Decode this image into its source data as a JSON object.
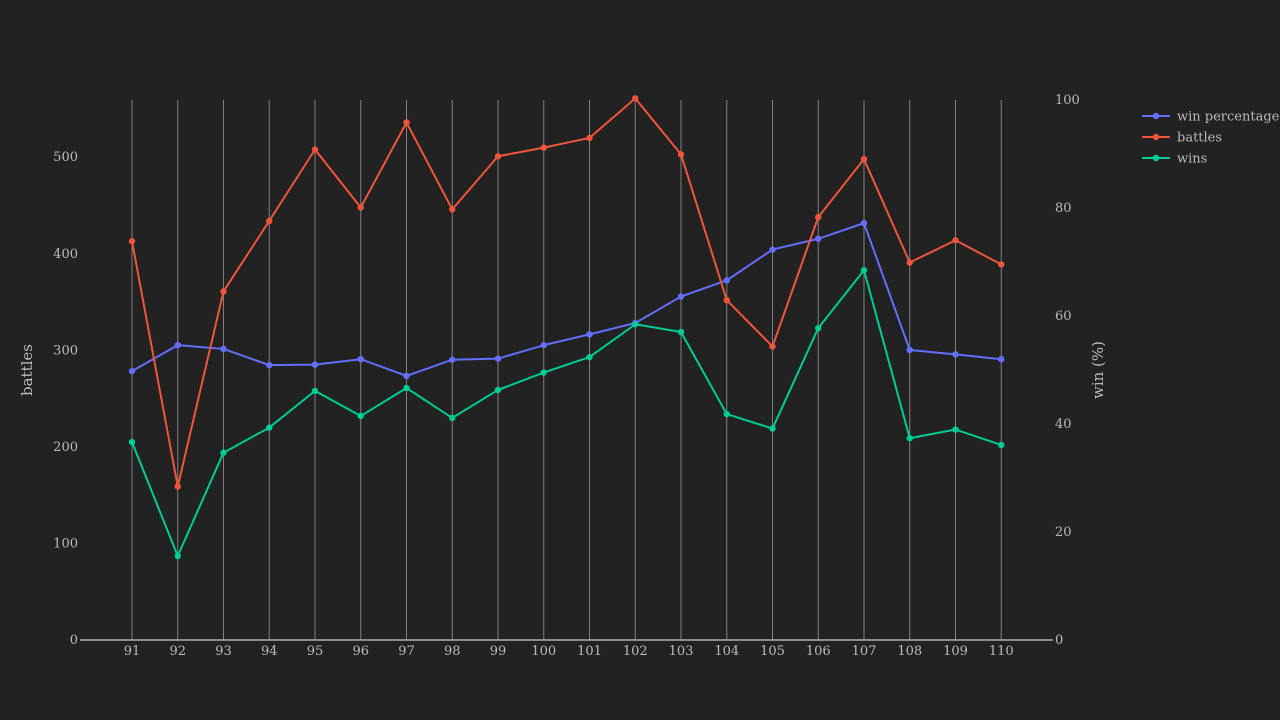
{
  "chart_data": {
    "type": "line",
    "x": [
      91,
      92,
      93,
      94,
      95,
      96,
      97,
      98,
      99,
      100,
      101,
      102,
      103,
      104,
      105,
      106,
      107,
      108,
      109,
      110
    ],
    "xtick_labels": [
      "91",
      "92",
      "93",
      "94",
      "95",
      "96",
      "97",
      "98",
      "99",
      "100",
      "101",
      "102",
      "103",
      "104",
      "105",
      "106",
      "107",
      "108",
      "109",
      "110"
    ],
    "ylabel": "battles",
    "y2label": "win (%)",
    "ylim": [
      0,
      580
    ],
    "y2lim": [
      0,
      100
    ],
    "yticks": [
      0,
      100,
      200,
      300,
      400,
      500
    ],
    "y2ticks": [
      0,
      20,
      40,
      60,
      80,
      100
    ],
    "grid": "vertical",
    "legend_position": "top-right",
    "series": [
      {
        "name": "win percentage",
        "axis": "right",
        "color": "#636efa",
        "values": [
          49.8,
          54.6,
          53.9,
          50.9,
          51.0,
          52.0,
          48.9,
          51.9,
          52.1,
          54.6,
          56.6,
          58.7,
          63.6,
          66.6,
          72.3,
          74.3,
          77.2,
          53.7,
          52.9,
          52.0
        ]
      },
      {
        "name": "battles",
        "axis": "left",
        "color": "#ef553b",
        "values": [
          413,
          159,
          361,
          434,
          508,
          448,
          536,
          446,
          501,
          510,
          520,
          561,
          503,
          352,
          304,
          438,
          498,
          391,
          414,
          389
        ]
      },
      {
        "name": "wins",
        "axis": "left",
        "color": "#00cc96",
        "values": [
          205,
          87,
          194,
          220,
          258,
          232,
          261,
          230,
          259,
          277,
          293,
          327,
          319,
          234,
          219,
          323,
          383,
          209,
          218,
          202
        ]
      }
    ]
  }
}
